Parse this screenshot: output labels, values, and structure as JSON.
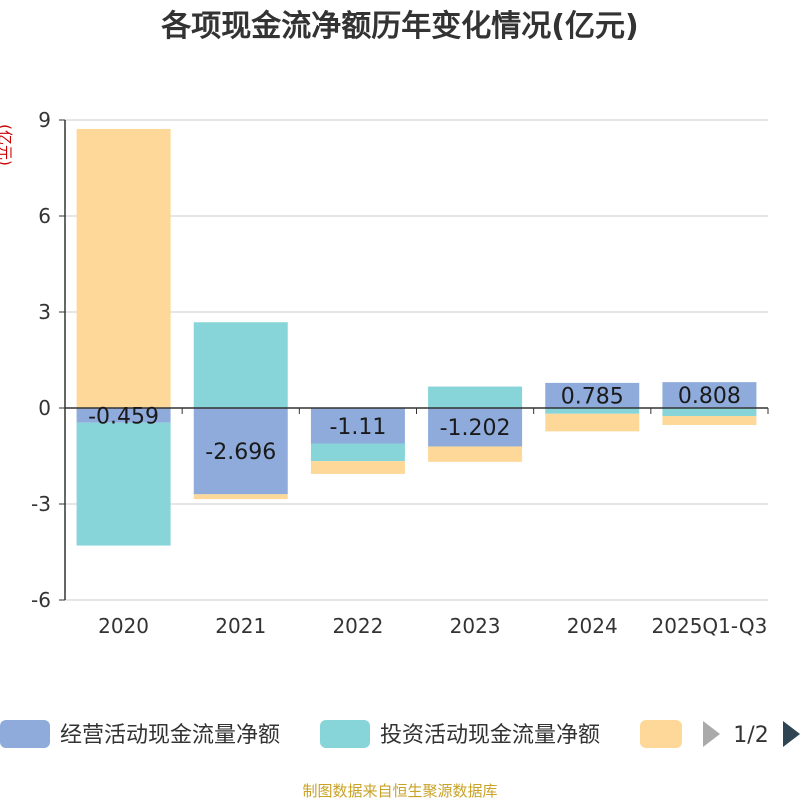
{
  "chart_data": {
    "type": "bar",
    "stacked": true,
    "title": "各项现金流净额历年变化情况(亿元)",
    "ylabel": "(亿元)",
    "ylim": [
      -6,
      9
    ],
    "yticks": [
      9,
      6,
      3,
      0,
      -3,
      -6
    ],
    "categories": [
      "2020",
      "2021",
      "2022",
      "2023",
      "2024",
      "2025Q1-Q3"
    ],
    "series": [
      {
        "name": "经营活动现金流量净额",
        "color": "#8eabdb",
        "values": [
          -0.459,
          -2.696,
          -1.11,
          -1.202,
          0.785,
          0.808
        ]
      },
      {
        "name": "投资活动现金流量净额",
        "color": "#87d5d8",
        "values": [
          -3.84,
          2.68,
          -0.55,
          0.67,
          -0.18,
          -0.25
        ]
      },
      {
        "name": "",
        "color": "#fdd899",
        "values": [
          8.72,
          -0.15,
          -0.4,
          -0.48,
          -0.55,
          -0.28
        ]
      }
    ],
    "data_labels": [
      "-0.459",
      "-2.696",
      "-1.11",
      "-1.202",
      "0.785",
      "0.808"
    ],
    "grid": true,
    "legend": {
      "position": "bottom",
      "page": "1/2"
    }
  },
  "source": "制图数据来自恒生聚源数据库"
}
